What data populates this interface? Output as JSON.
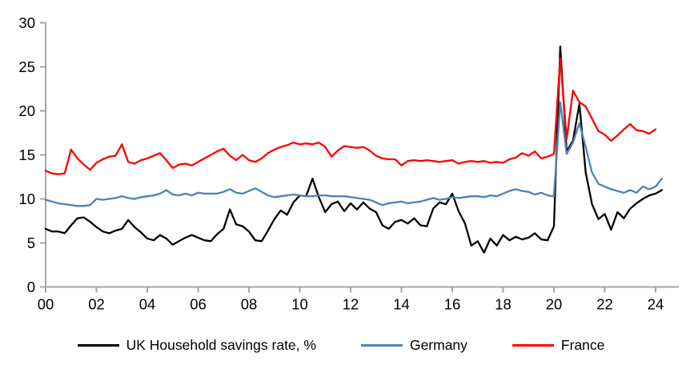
{
  "chart_data": {
    "type": "line",
    "title": "",
    "xlabel": "",
    "ylabel": "",
    "x_unit": "quarterly",
    "x_start_year": 2000,
    "ylim": [
      0,
      30
    ],
    "y_ticks": [
      0,
      5,
      10,
      15,
      20,
      25,
      30
    ],
    "x_tick_labels": [
      "00",
      "02",
      "04",
      "06",
      "08",
      "10",
      "12",
      "14",
      "16",
      "18",
      "20",
      "22",
      "24"
    ],
    "grid": false,
    "legend_position": "bottom",
    "axis_color": "#a6a6a6",
    "text_color": "#000000",
    "series": [
      {
        "name": "UK Household savings rate, %",
        "color": "#000000",
        "values": [
          6.6,
          6.3,
          6.3,
          6.1,
          7.0,
          7.8,
          7.9,
          7.4,
          6.8,
          6.3,
          6.1,
          6.4,
          6.6,
          7.6,
          6.8,
          6.2,
          5.5,
          5.3,
          5.9,
          5.5,
          4.8,
          5.2,
          5.6,
          5.9,
          5.6,
          5.3,
          5.2,
          6.0,
          6.6,
          8.8,
          7.1,
          6.9,
          6.3,
          5.3,
          5.2,
          6.4,
          7.7,
          8.7,
          8.2,
          9.6,
          10.4,
          10.3,
          12.3,
          10.2,
          8.5,
          9.4,
          9.7,
          8.6,
          9.5,
          8.8,
          9.6,
          8.9,
          8.5,
          7.0,
          6.6,
          7.4,
          7.6,
          7.2,
          7.8,
          7.0,
          6.9,
          8.9,
          9.6,
          9.4,
          10.6,
          8.6,
          7.2,
          4.7,
          5.2,
          3.9,
          5.5,
          4.7,
          5.9,
          5.3,
          5.7,
          5.4,
          5.6,
          6.1,
          5.4,
          5.3,
          6.9,
          27.3,
          15.4,
          16.6,
          20.8,
          13.0,
          9.4,
          7.7,
          8.3,
          6.5,
          8.5,
          7.8,
          8.9,
          9.5,
          10.0,
          10.4,
          10.6,
          11.0
        ]
      },
      {
        "name": "Germany",
        "color": "#4d82b8",
        "values": [
          9.9,
          9.7,
          9.5,
          9.4,
          9.3,
          9.2,
          9.2,
          9.3,
          10.0,
          9.9,
          10.0,
          10.1,
          10.3,
          10.1,
          10.0,
          10.2,
          10.3,
          10.4,
          10.6,
          11.0,
          10.5,
          10.4,
          10.6,
          10.4,
          10.7,
          10.6,
          10.6,
          10.6,
          10.8,
          11.1,
          10.7,
          10.6,
          10.9,
          11.2,
          10.8,
          10.4,
          10.2,
          10.3,
          10.4,
          10.5,
          10.4,
          10.3,
          10.3,
          10.4,
          10.4,
          10.3,
          10.3,
          10.3,
          10.2,
          10.1,
          10.0,
          9.9,
          9.6,
          9.3,
          9.5,
          9.6,
          9.7,
          9.5,
          9.6,
          9.7,
          9.9,
          10.1,
          9.9,
          10.0,
          10.2,
          10.1,
          10.2,
          10.3,
          10.3,
          10.2,
          10.4,
          10.3,
          10.6,
          10.9,
          11.1,
          10.9,
          10.8,
          10.5,
          10.7,
          10.4,
          10.3,
          21.0,
          15.1,
          16.4,
          18.6,
          15.9,
          13.0,
          11.7,
          11.4,
          11.1,
          10.9,
          10.7,
          11.0,
          10.7,
          11.4,
          11.1,
          11.4,
          12.3
        ]
      },
      {
        "name": "France",
        "color": "#ff0000",
        "values": [
          13.2,
          12.9,
          12.8,
          12.9,
          15.6,
          14.6,
          13.9,
          13.3,
          14.1,
          14.5,
          14.8,
          14.9,
          16.2,
          14.2,
          14.0,
          14.4,
          14.6,
          14.9,
          15.2,
          14.4,
          13.5,
          13.9,
          14.0,
          13.8,
          14.2,
          14.6,
          15.0,
          15.4,
          15.7,
          14.9,
          14.4,
          15.0,
          14.4,
          14.2,
          14.6,
          15.2,
          15.6,
          15.9,
          16.1,
          16.4,
          16.2,
          16.3,
          16.2,
          16.4,
          15.9,
          14.8,
          15.5,
          16.0,
          15.9,
          15.8,
          15.9,
          15.5,
          14.9,
          14.6,
          14.5,
          14.5,
          13.8,
          14.3,
          14.4,
          14.3,
          14.4,
          14.3,
          14.2,
          14.3,
          14.4,
          14.0,
          14.2,
          14.3,
          14.2,
          14.3,
          14.1,
          14.2,
          14.1,
          14.5,
          14.7,
          15.2,
          14.9,
          15.4,
          14.6,
          14.8,
          15.1,
          26.0,
          16.8,
          22.3,
          21.0,
          20.5,
          19.1,
          17.7,
          17.3,
          16.6,
          17.2,
          17.9,
          18.5,
          17.8,
          17.7,
          17.4,
          17.9
        ]
      }
    ]
  }
}
